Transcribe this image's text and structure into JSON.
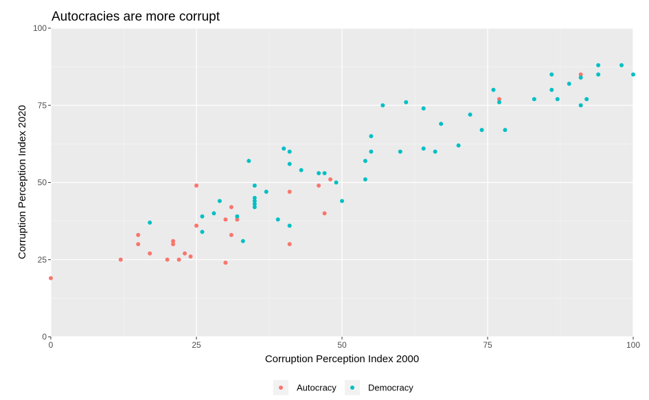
{
  "chart_data": {
    "type": "scatter",
    "title": "Autocracies are more corrupt",
    "xlabel": "Corruption Perception Index 2000",
    "ylabel": "Corruption Perception Index 2020",
    "xlim": [
      0,
      100
    ],
    "ylim": [
      0,
      100
    ],
    "x_ticks": [
      0,
      25,
      50,
      75,
      100
    ],
    "y_ticks": [
      0,
      25,
      50,
      75,
      100
    ],
    "grid": true,
    "legend_position": "bottom",
    "background": "#ebebeb",
    "series": [
      {
        "name": "Autocracy",
        "color": "#f8766d",
        "points": [
          [
            0,
            19
          ],
          [
            12,
            25
          ],
          [
            15,
            33
          ],
          [
            15,
            30
          ],
          [
            17,
            27
          ],
          [
            20,
            25
          ],
          [
            21,
            31
          ],
          [
            21,
            30
          ],
          [
            22,
            25
          ],
          [
            23,
            27
          ],
          [
            24,
            26
          ],
          [
            25,
            49
          ],
          [
            25,
            36
          ],
          [
            30,
            38
          ],
          [
            30,
            24
          ],
          [
            31,
            42
          ],
          [
            31,
            33
          ],
          [
            32,
            38
          ],
          [
            41,
            47
          ],
          [
            41,
            30
          ],
          [
            46,
            49
          ],
          [
            47,
            40
          ],
          [
            48,
            51
          ],
          [
            77,
            77
          ],
          [
            91,
            85
          ]
        ]
      },
      {
        "name": "Democracy",
        "color": "#00bfc4",
        "points": [
          [
            17,
            37
          ],
          [
            26,
            39
          ],
          [
            26,
            34
          ],
          [
            28,
            40
          ],
          [
            29,
            44
          ],
          [
            32,
            39
          ],
          [
            33,
            31
          ],
          [
            34,
            57
          ],
          [
            35,
            49
          ],
          [
            35,
            45
          ],
          [
            35,
            44
          ],
          [
            35,
            43
          ],
          [
            35,
            42
          ],
          [
            37,
            47
          ],
          [
            39,
            38
          ],
          [
            40,
            61
          ],
          [
            41,
            60
          ],
          [
            41,
            56
          ],
          [
            41,
            36
          ],
          [
            43,
            54
          ],
          [
            46,
            53
          ],
          [
            47,
            53
          ],
          [
            49,
            50
          ],
          [
            50,
            44
          ],
          [
            54,
            57
          ],
          [
            54,
            51
          ],
          [
            55,
            65
          ],
          [
            55,
            60
          ],
          [
            57,
            75
          ],
          [
            60,
            60
          ],
          [
            61,
            76
          ],
          [
            64,
            74
          ],
          [
            64,
            61
          ],
          [
            66,
            60
          ],
          [
            67,
            69
          ],
          [
            70,
            62
          ],
          [
            72,
            72
          ],
          [
            74,
            67
          ],
          [
            76,
            80
          ],
          [
            77,
            76
          ],
          [
            78,
            67
          ],
          [
            83,
            77
          ],
          [
            86,
            85
          ],
          [
            86,
            80
          ],
          [
            87,
            77
          ],
          [
            89,
            82
          ],
          [
            91,
            84
          ],
          [
            91,
            75
          ],
          [
            92,
            77
          ],
          [
            94,
            88
          ],
          [
            94,
            85
          ],
          [
            98,
            88
          ],
          [
            100,
            85
          ]
        ]
      }
    ]
  }
}
